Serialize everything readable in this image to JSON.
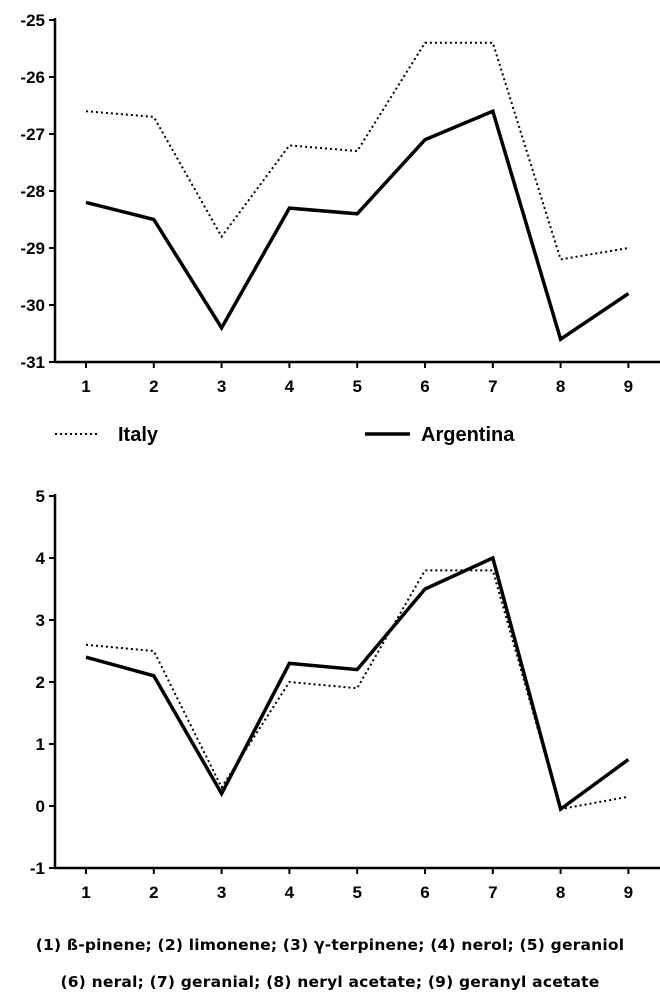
{
  "legend": {
    "italy_label": "Italy",
    "argentina_label": "Argentina"
  },
  "caption": {
    "line1": "(1) ß-pinene; (2) limonene; (3) γ-terpinene; (4) nerol; (5) geraniol",
    "line2": "(6) neral; (7) geranial; (8) neryl acetate; (9) geranyl acetate"
  },
  "chart_data": [
    {
      "type": "line",
      "categories": [
        "1",
        "2",
        "3",
        "4",
        "5",
        "6",
        "7",
        "8",
        "9"
      ],
      "yticks": [
        "-25",
        "-26",
        "-27",
        "-28",
        "-29",
        "-30",
        "-31"
      ],
      "ylim": [
        -31,
        -25
      ],
      "series": [
        {
          "name": "Italy",
          "style": "dotted",
          "values": [
            -26.6,
            -26.7,
            -28.8,
            -27.2,
            -27.3,
            -25.4,
            -25.4,
            -29.2,
            -29.0
          ]
        },
        {
          "name": "Argentina",
          "style": "solid",
          "values": [
            -28.2,
            -28.5,
            -30.4,
            -28.3,
            -28.4,
            -27.1,
            -26.6,
            -30.6,
            -29.8
          ]
        }
      ]
    },
    {
      "type": "line",
      "categories": [
        "1",
        "2",
        "3",
        "4",
        "5",
        "6",
        "7",
        "8",
        "9"
      ],
      "yticks": [
        "5",
        "4",
        "3",
        "2",
        "1",
        "0",
        "-1"
      ],
      "ylim": [
        -1,
        5
      ],
      "series": [
        {
          "name": "Italy",
          "style": "dotted",
          "values": [
            2.6,
            2.5,
            0.3,
            2.0,
            1.9,
            3.8,
            3.8,
            -0.05,
            0.15
          ]
        },
        {
          "name": "Argentina",
          "style": "solid",
          "values": [
            2.4,
            2.1,
            0.2,
            2.3,
            2.2,
            3.5,
            4.0,
            -0.05,
            0.75
          ]
        }
      ]
    }
  ]
}
